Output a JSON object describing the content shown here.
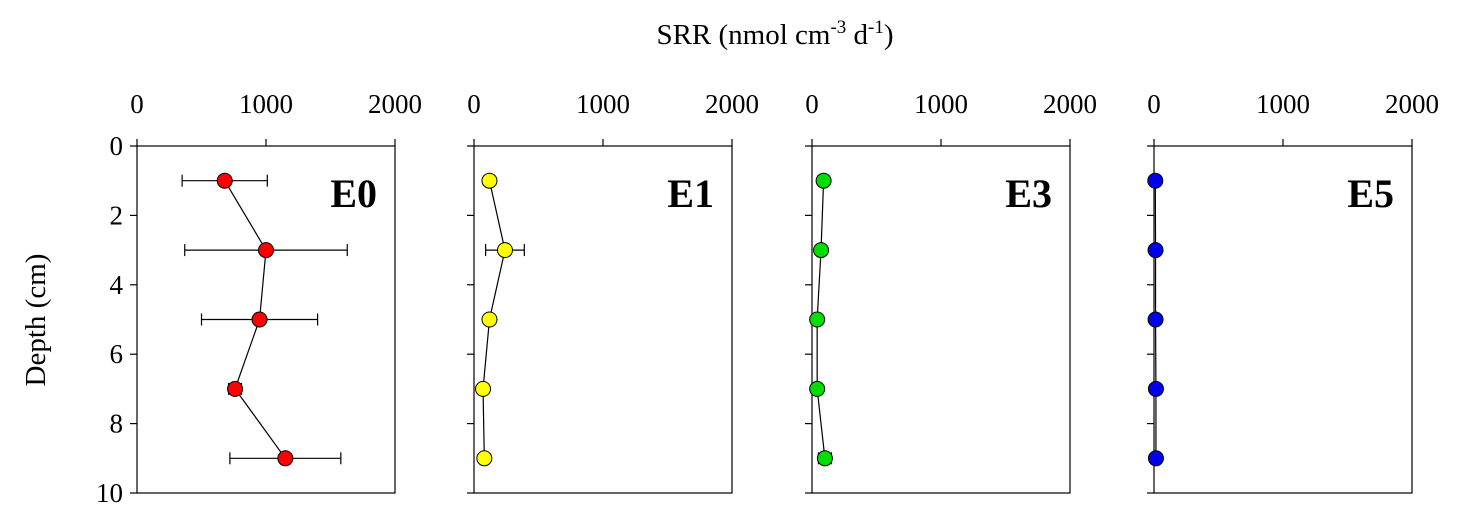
{
  "chart_data": {
    "type": "scatter",
    "x_title": {
      "main": "SRR (nmol cm",
      "exp1": "-3",
      "mid": " d",
      "exp2": "-1",
      "end": ")"
    },
    "ylabel": "Depth (cm)",
    "xlim": [
      0,
      2000
    ],
    "ylim": [
      0,
      10
    ],
    "x_ticks": [
      0,
      1000,
      2000
    ],
    "y_ticks": [
      0,
      2,
      4,
      6,
      8,
      10
    ],
    "y_reversed": true,
    "grid": false,
    "panels": [
      {
        "label": "E0",
        "color": "#ff0000",
        "points": [
          {
            "x": 680,
            "y": 1,
            "err": 330
          },
          {
            "x": 1000,
            "y": 3,
            "err": 630
          },
          {
            "x": 950,
            "y": 5,
            "err": 450
          },
          {
            "x": 760,
            "y": 7,
            "err": 50
          },
          {
            "x": 1150,
            "y": 9,
            "err": 430
          }
        ]
      },
      {
        "label": "E1",
        "color": "#ffff00",
        "points": [
          {
            "x": 120,
            "y": 1,
            "err": 0
          },
          {
            "x": 240,
            "y": 3,
            "err": 150
          },
          {
            "x": 120,
            "y": 5,
            "err": 0
          },
          {
            "x": 70,
            "y": 7,
            "err": 0
          },
          {
            "x": 80,
            "y": 9,
            "err": 0
          }
        ]
      },
      {
        "label": "E3",
        "color": "#00dd00",
        "points": [
          {
            "x": 90,
            "y": 1,
            "err": 0
          },
          {
            "x": 70,
            "y": 3,
            "err": 0
          },
          {
            "x": 40,
            "y": 5,
            "err": 0
          },
          {
            "x": 40,
            "y": 7,
            "err": 0
          },
          {
            "x": 100,
            "y": 9,
            "err": 50
          }
        ]
      },
      {
        "label": "E5",
        "color": "#0000ee",
        "points": [
          {
            "x": 10,
            "y": 1,
            "err": 0
          },
          {
            "x": 12,
            "y": 3,
            "err": 0
          },
          {
            "x": 12,
            "y": 5,
            "err": 0
          },
          {
            "x": 15,
            "y": 7,
            "err": 0
          },
          {
            "x": 15,
            "y": 9,
            "err": 0
          }
        ]
      }
    ]
  }
}
